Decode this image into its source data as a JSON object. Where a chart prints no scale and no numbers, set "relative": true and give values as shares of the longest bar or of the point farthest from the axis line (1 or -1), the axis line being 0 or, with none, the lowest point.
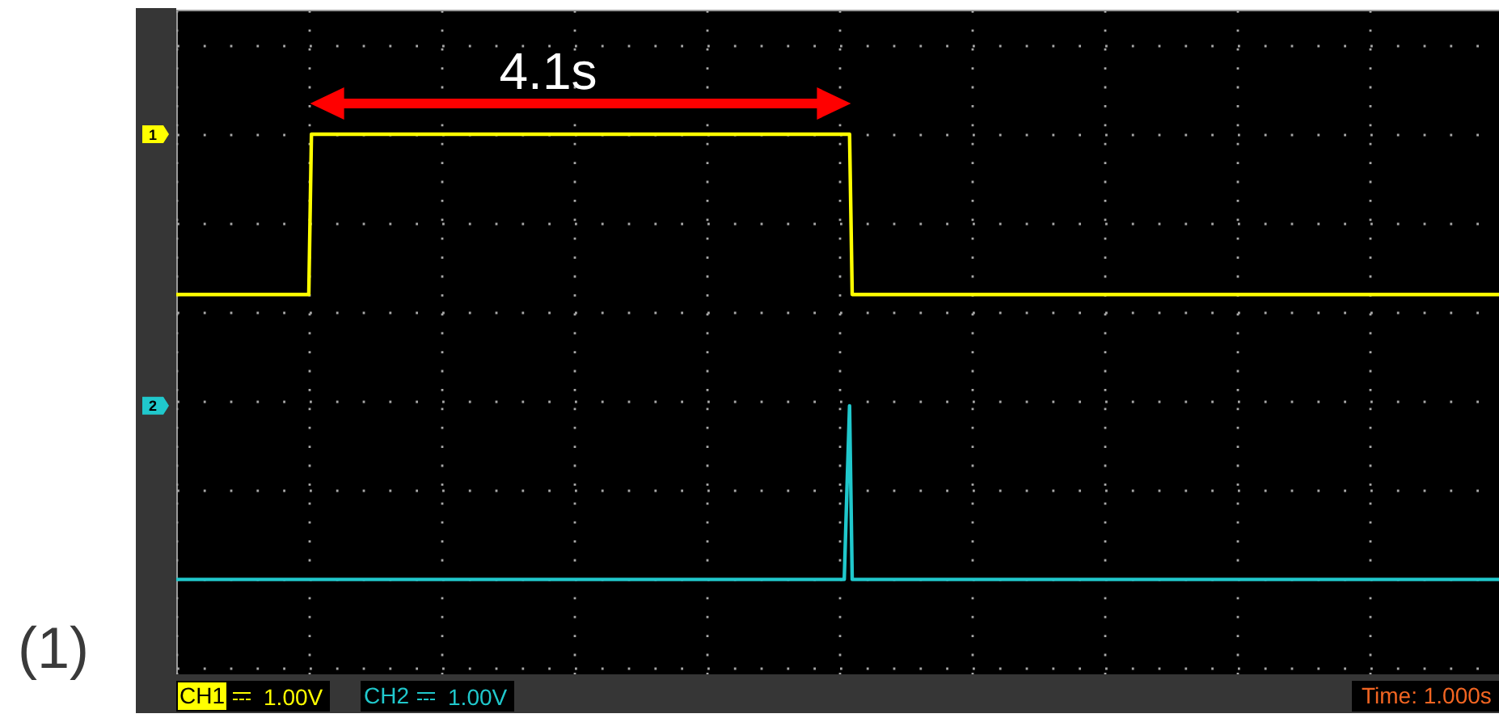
{
  "chart_data": {
    "type": "line",
    "relative": true,
    "grid": true,
    "legend": "bottom left",
    "categories": [
      null,
      null,
      null,
      null,
      null,
      null,
      null,
      null,
      null,
      null,
      null,
      null,
      null,
      null,
      null,
      null,
      null,
      null,
      null,
      null,
      null,
      null,
      null,
      null,
      null,
      null,
      null,
      null,
      null,
      null,
      null,
      null,
      null,
      null,
      null,
      null,
      null,
      null,
      null,
      null,
      null,
      null,
      null,
      null,
      null,
      null,
      null,
      null,
      null,
      null,
      null,
      null,
      null,
      null,
      null,
      null,
      null,
      null,
      null,
      null,
      null,
      null,
      null,
      null,
      null,
      null,
      null,
      null,
      null,
      null,
      null,
      null,
      null,
      null,
      null,
      null,
      null,
      null,
      null,
      null,
      null,
      null,
      null,
      null,
      null,
      null,
      null,
      null,
      null,
      null,
      null,
      null,
      null,
      null,
      null,
      null,
      null,
      null,
      null,
      null,
      null,
      null,
      null,
      null,
      null,
      null,
      null,
      null,
      null,
      null,
      null,
      null,
      null,
      null,
      null,
      null,
      null,
      null,
      null,
      null,
      null,
      null,
      null,
      null,
      null,
      null,
      null,
      null,
      null,
      null,
      null,
      null,
      null,
      null,
      null,
      null,
      null,
      null,
      null,
      null,
      null,
      null,
      null,
      null,
      null,
      null,
      null,
      null,
      null,
      null,
      null,
      null,
      null,
      null,
      null,
      null,
      null,
      null,
      null,
      null,
      null,
      null,
      null,
      null,
      null,
      null,
      null,
      null,
      null,
      null,
      null,
      null,
      null,
      null,
      null,
      null,
      null,
      null,
      null,
      null,
      null,
      null,
      null,
      null,
      null,
      null,
      null,
      null,
      null,
      null,
      null,
      null,
      null,
      null,
      null,
      null,
      null,
      null,
      null,
      null,
      null,
      null,
      null,
      null,
      null,
      null,
      null,
      null,
      null,
      null,
      null,
      null,
      null,
      null,
      null,
      null,
      null,
      null,
      null,
      null,
      null,
      null,
      null,
      null,
      null,
      null,
      null,
      null,
      null,
      null,
      null,
      null,
      null,
      null,
      null,
      null,
      null,
      null,
      null,
      null,
      null,
      null,
      null,
      null,
      null,
      null,
      null,
      null,
      null,
      null,
      null,
      null,
      null,
      null,
      null,
      null,
      null,
      null,
      null,
      null,
      null,
      null,
      null,
      null,
      null,
      null,
      null,
      null,
      null,
      null,
      null,
      null,
      null,
      null,
      null,
      null,
      null,
      null,
      null,
      null,
      null,
      null,
      null,
      null,
      null,
      null,
      null,
      null,
      null,
      null,
      null,
      null,
      null,
      null,
      null,
      null,
      null,
      null,
      null,
      null,
      null,
      null,
      null,
      null,
      null,
      null,
      null,
      null,
      null,
      null,
      null,
      null,
      null,
      null,
      null,
      null,
      null,
      null,
      null,
      null,
      null,
      null,
      null,
      null,
      null,
      null,
      null,
      null,
      null,
      null,
      null,
      null,
      null,
      null,
      null,
      null,
      null,
      null,
      null,
      null,
      null,
      null,
      null,
      null,
      null,
      null,
      null,
      null,
      null,
      null,
      null,
      null,
      null,
      null,
      null,
      null,
      null,
      null,
      null,
      null,
      null,
      null,
      null,
      null,
      null,
      null,
      null,
      null,
      null,
      null,
      null,
      null,
      null,
      null,
      null,
      null,
      null,
      null,
      null,
      null,
      null,
      null,
      null,
      null,
      null,
      null,
      null,
      null,
      null,
      null,
      null,
      null,
      null,
      null,
      null,
      null,
      null,
      null,
      null,
      null,
      null,
      null,
      null,
      null,
      null,
      null,
      null,
      null,
      null,
      null,
      null,
      null,
      null,
      null,
      null,
      null,
      null,
      null,
      null,
      null,
      null,
      null,
      null,
      null,
      null,
      null,
      null,
      null,
      null,
      null,
      null,
      null,
      null,
      null,
      null,
      null,
      null,
      null,
      null,
      null,
      null,
      null,
      null,
      null,
      null,
      null,
      null,
      null,
      null,
      null,
      null,
      null,
      null,
      null,
      null,
      null,
      null,
      null,
      null,
      null,
      null,
      null,
      null,
      null,
      null,
      null,
      null,
      null,
      null,
      null,
      null,
      null,
      null,
      null,
      null,
      null,
      null,
      null,
      null,
      null,
      null,
      null,
      null,
      null,
      null,
      null,
      null,
      null,
      null,
      null,
      null,
      null,
      null,
      null,
      null,
      null,
      null,
      null,
      null,
      null
    ],
    "series": [
      {
        "name": "CH1",
        "color": "#ffff00",
        "values": [
          0.64,
          0.64,
          0.64,
          0.64,
          0.64,
          0.64,
          0.64,
          0.64,
          0.64,
          0.64,
          0.64,
          0.64,
          0.64,
          0.64,
          0.64,
          0.64,
          0.64,
          0.64,
          0.64,
          0.64,
          0.64,
          0.64,
          0.64,
          0.64,
          0.64,
          0.64,
          0.64,
          0.64,
          0.64,
          0.64,
          0.64,
          0.64,
          0.64,
          0.64,
          0.64,
          0.64,
          0.64,
          0.64,
          0.64,
          0.64,
          0.64,
          0.64,
          0.64,
          0.64,
          0.64,
          0.64,
          0.64,
          0.64,
          0.64,
          0.64,
          0.64,
          1,
          1,
          1,
          1,
          1,
          1,
          1,
          1,
          1,
          1,
          1,
          1,
          1,
          1,
          1,
          1,
          1,
          1,
          1,
          1,
          1,
          1,
          1,
          1,
          1,
          1,
          1,
          1,
          1,
          1,
          1,
          1,
          1,
          1,
          1,
          1,
          1,
          1,
          1,
          1,
          1,
          1,
          1,
          1,
          1,
          1,
          1,
          1,
          1,
          1,
          1,
          1,
          1,
          1,
          1,
          1,
          1,
          1,
          1,
          1,
          1,
          1,
          1,
          1,
          1,
          1,
          1,
          1,
          1,
          1,
          1,
          1,
          1,
          1,
          1,
          1,
          1,
          1,
          1,
          1,
          1,
          1,
          1,
          1,
          1,
          1,
          1,
          1,
          1,
          1,
          1,
          1,
          1,
          1,
          1,
          1,
          1,
          1,
          1,
          1,
          1,
          1,
          1,
          1,
          1,
          1,
          1,
          1,
          1,
          1,
          1,
          1,
          1,
          1,
          1,
          1,
          1,
          1,
          1,
          1,
          1,
          1,
          1,
          1,
          1,
          1,
          1,
          1,
          1,
          1,
          1,
          1,
          1,
          1,
          1,
          1,
          1,
          1,
          1,
          1,
          1,
          1,
          1,
          1,
          1,
          1,
          1,
          1,
          1,
          1,
          1,
          1,
          1,
          1,
          1,
          1,
          1,
          1,
          1,
          1,
          1,
          1,
          1,
          1,
          1,
          1,
          1,
          1,
          1,
          1,
          1,
          1,
          1,
          1,
          1,
          1,
          1,
          1,
          1,
          1,
          1,
          1,
          1,
          1,
          1,
          1,
          1,
          1,
          1,
          1,
          1,
          1,
          1,
          1,
          1,
          1,
          1,
          1,
          1,
          1,
          1,
          1,
          1,
          1,
          0.64,
          0.64,
          0.64,
          0.64,
          0.64,
          0.64,
          0.64,
          0.64,
          0.64,
          0.64,
          0.64,
          0.64,
          0.64,
          0.64,
          0.64,
          0.64,
          0.64,
          0.64,
          0.64,
          0.64,
          0.64,
          0.64,
          0.64,
          0.64,
          0.64,
          0.64,
          0.64,
          0.64,
          0.64,
          0.64,
          0.64,
          0.64,
          0.64,
          0.64,
          0.64,
          0.64,
          0.64,
          0.64,
          0.64,
          0.64,
          0.64,
          0.64,
          0.64,
          0.64,
          0.64,
          0.64,
          0.64,
          0.64,
          0.64,
          0.64,
          0.64,
          0.64,
          0.64,
          0.64,
          0.64,
          0.64,
          0.64,
          0.64,
          0.64,
          0.64,
          0.64,
          0.64,
          0.64,
          0.64,
          0.64,
          0.64,
          0.64,
          0.64,
          0.64,
          0.64,
          0.64,
          0.64,
          0.64,
          0.64,
          0.64,
          0.64,
          0.64,
          0.64,
          0.64,
          0.64,
          0.64,
          0.64,
          0.64,
          0.64,
          0.64,
          0.64,
          0.64,
          0.64,
          0.64,
          0.64,
          0.64,
          0.64,
          0.64,
          0.64,
          0.64,
          0.64,
          0.64,
          0.64,
          0.64,
          0.64,
          0.64,
          0.64,
          0.64,
          0.64,
          0.64,
          0.64,
          0.64,
          0.64,
          0.64,
          0.64,
          0.64,
          0.64,
          0.64,
          0.64,
          0.64,
          0.64,
          0.64,
          0.64,
          0.64,
          0.64,
          0.64,
          0.64,
          0.64,
          0.64,
          0.64,
          0.64,
          0.64,
          0.64,
          0.64,
          0.64,
          0.64,
          0.64,
          0.64,
          0.64,
          0.64,
          0.64,
          0.64,
          0.64,
          0.64,
          0.64,
          0.64,
          0.64,
          0.64,
          0.64,
          0.64,
          0.64,
          0.64,
          0.64,
          0.64,
          0.64,
          0.64,
          0.64,
          0.64,
          0.64,
          0.64,
          0.64,
          0.64,
          0.64,
          0.64,
          0.64,
          0.64,
          0.64,
          0.64,
          0.64,
          0.64,
          0.64,
          0.64,
          0.64,
          0.64,
          0.64,
          0.64,
          0.64,
          0.64,
          0.64,
          0.64,
          0.64,
          0.64,
          0.64,
          0.64,
          0.64,
          0.64,
          0.64,
          0.64,
          0.64,
          0.64,
          0.64,
          0.64,
          0.64,
          0.64,
          0.64,
          0.64,
          0.64,
          0.64,
          0.64,
          0.64,
          0.64,
          0.64,
          0.64,
          0.64,
          0.64,
          0.64,
          0.64,
          0.64,
          0.64,
          0.64,
          0.64,
          0.64,
          0.64,
          0.64,
          0.64,
          0.64,
          0.64,
          0.64,
          0.64,
          0.64,
          0.64,
          0.64,
          0.64,
          0.64,
          0.64,
          0.64,
          0.64,
          0.64,
          0.64,
          0.64,
          0.64,
          0.64,
          0.64,
          0.64,
          0.64,
          0.64,
          0.64,
          0.64,
          0.64,
          0.64,
          0.64,
          0.64,
          0.64,
          0.64,
          0.64,
          0.64,
          0.64,
          0.64,
          0.64,
          0.64
        ]
      },
      {
        "name": "CH2",
        "color": "#20c8cc",
        "values": [
          0,
          0,
          0,
          0,
          0,
          0,
          0,
          0,
          0,
          0,
          0,
          0,
          0,
          0,
          0,
          0,
          0,
          0,
          0,
          0,
          0,
          0,
          0,
          0,
          0,
          0,
          0,
          0,
          0,
          0,
          0,
          0,
          0,
          0,
          0,
          0,
          0,
          0,
          0,
          0,
          0,
          0,
          0,
          0,
          0,
          0,
          0,
          0,
          0,
          0,
          0,
          0,
          0,
          0,
          0,
          0,
          0,
          0,
          0,
          0,
          0,
          0,
          0,
          0,
          0,
          0,
          0,
          0,
          0,
          0,
          0,
          0,
          0,
          0,
          0,
          0,
          0,
          0,
          0,
          0,
          0,
          0,
          0,
          0,
          0,
          0,
          0,
          0,
          0,
          0,
          0,
          0,
          0,
          0,
          0,
          0,
          0,
          0,
          0,
          0,
          0,
          0,
          0,
          0,
          0,
          0,
          0,
          0,
          0,
          0,
          0,
          0,
          0,
          0,
          0,
          0,
          0,
          0,
          0,
          0,
          0,
          0,
          0,
          0,
          0,
          0,
          0,
          0,
          0,
          0,
          0,
          0,
          0,
          0,
          0,
          0,
          0,
          0,
          0,
          0,
          0,
          0,
          0,
          0,
          0,
          0,
          0,
          0,
          0,
          0,
          0,
          0,
          0,
          0,
          0,
          0,
          0,
          0,
          0,
          0,
          0,
          0,
          0,
          0,
          0,
          0,
          0,
          0,
          0,
          0,
          0,
          0,
          0,
          0,
          0,
          0,
          0,
          0,
          0,
          0,
          0,
          0,
          0,
          0,
          0,
          0,
          0,
          0,
          0,
          0,
          0,
          0,
          0,
          0,
          0,
          0,
          0,
          0,
          0,
          0,
          0,
          0,
          0,
          0,
          0,
          0,
          0,
          0,
          0,
          0,
          0,
          0,
          0,
          0,
          0,
          0,
          0,
          0,
          0,
          0,
          0,
          0,
          0,
          0,
          0,
          0,
          0,
          0,
          0,
          0,
          0,
          0,
          0,
          0,
          0,
          0,
          0,
          0,
          0,
          0,
          0,
          0,
          0,
          0,
          0,
          0,
          0,
          0,
          0,
          0,
          0,
          0,
          0,
          0.2,
          0.39,
          0,
          0,
          0,
          0,
          0,
          0,
          0,
          0,
          0,
          0,
          0,
          0,
          0,
          0,
          0,
          0,
          0,
          0,
          0,
          0,
          0,
          0,
          0,
          0,
          0,
          0,
          0,
          0,
          0,
          0,
          0,
          0,
          0,
          0,
          0,
          0,
          0,
          0,
          0,
          0,
          0,
          0,
          0,
          0,
          0,
          0,
          0,
          0,
          0,
          0,
          0,
          0,
          0,
          0,
          0,
          0,
          0,
          0,
          0,
          0,
          0,
          0,
          0,
          0,
          0,
          0,
          0,
          0,
          0,
          0,
          0,
          0,
          0,
          0,
          0,
          0,
          0,
          0,
          0,
          0,
          0,
          0,
          0,
          0,
          0,
          0,
          0,
          0,
          0,
          0,
          0,
          0,
          0,
          0,
          0,
          0,
          0,
          0,
          0,
          0,
          0,
          0,
          0,
          0,
          0,
          0,
          0,
          0,
          0,
          0,
          0,
          0,
          0,
          0,
          0,
          0,
          0,
          0,
          0,
          0,
          0,
          0,
          0,
          0,
          0,
          0,
          0,
          0,
          0,
          0,
          0,
          0,
          0,
          0,
          0,
          0,
          0,
          0,
          0,
          0,
          0,
          0,
          0,
          0,
          0,
          0,
          0,
          0,
          0,
          0,
          0,
          0,
          0,
          0,
          0,
          0,
          0,
          0,
          0,
          0,
          0,
          0,
          0,
          0,
          0,
          0,
          0,
          0,
          0,
          0,
          0,
          0,
          0,
          0,
          0,
          0,
          0,
          0,
          0,
          0,
          0,
          0,
          0,
          0,
          0,
          0,
          0,
          0,
          0,
          0,
          0,
          0,
          0,
          0,
          0,
          0,
          0,
          0,
          0,
          0,
          0,
          0,
          0,
          0,
          0,
          0,
          0,
          0,
          0,
          0,
          0,
          0,
          0,
          0,
          0,
          0,
          0,
          0,
          0,
          0,
          0,
          0,
          0,
          0,
          0,
          0,
          0,
          0,
          0,
          0,
          0,
          0,
          0,
          0,
          0,
          0,
          0,
          0,
          0,
          0,
          0,
          0,
          0,
          0,
          0
        ]
      }
    ],
    "annotations": [
      "4.1s",
      "(1)",
      "1.00V",
      "1.00V",
      "Time: 1.000s",
      "1",
      "2"
    ]
  }
}
